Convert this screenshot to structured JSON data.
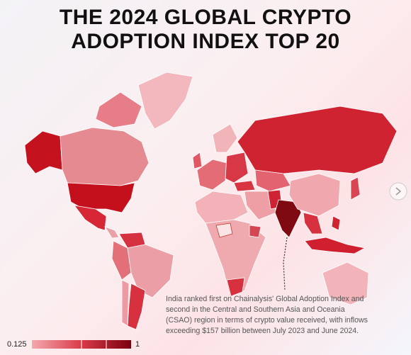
{
  "header": {
    "title_lines": [
      "THE 2024 GLOBAL CRYPTO",
      "ADOPTION INDEX TOP 20"
    ]
  },
  "annotation": "India ranked first on Chainalysis' Global Adoption Index and second in the Central and Southern Asia and Oceania (CSAO) region in terms of crypto value received, with inflows exceeding $157 billion between July 2023 and June 2024.",
  "legend": {
    "min": 0.125,
    "max": 1
  }
}
